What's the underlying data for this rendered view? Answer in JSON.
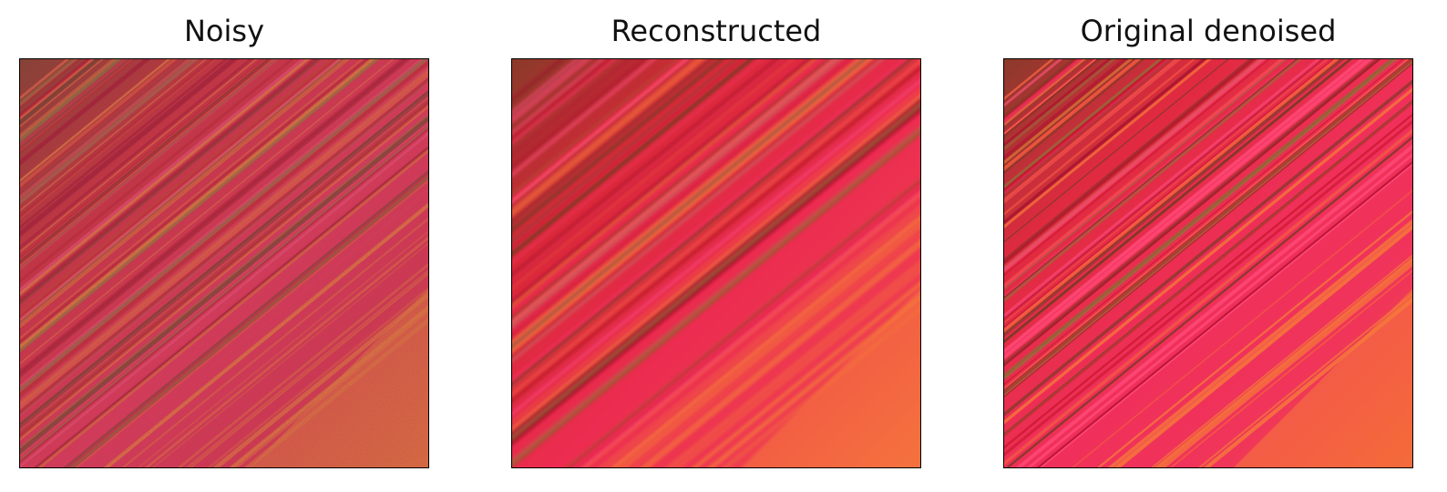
{
  "panels": [
    {
      "title": "Noisy",
      "image": "noisy-streaked-petal-texture",
      "variant": "noisy"
    },
    {
      "title": "Reconstructed",
      "image": "reconstructed-streaked-petal-texture",
      "variant": "blur"
    },
    {
      "title": "Original denoised",
      "image": "original-streaked-petal-texture",
      "variant": "clean"
    }
  ],
  "colors": {
    "base_pink": "#f0305a",
    "crimson": "#c8162e",
    "coral": "#f26040",
    "orange": "#f57a3a",
    "dark_brown": "#7a3a26",
    "olive": "#9a6a3a",
    "frame": "#000000",
    "background": "#ffffff"
  }
}
